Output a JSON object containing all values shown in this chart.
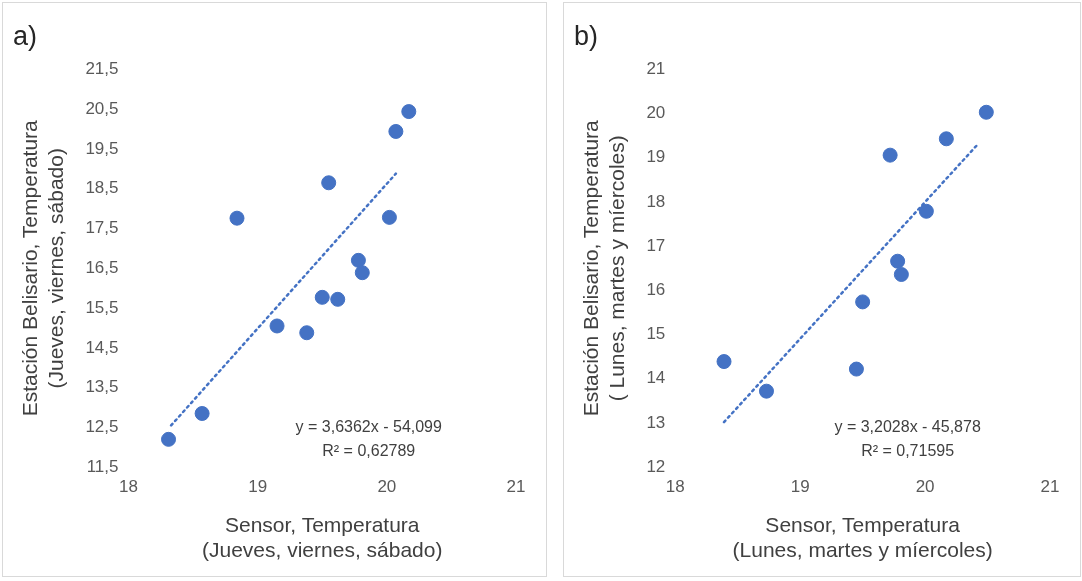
{
  "chart_data": [
    {
      "type": "scatter",
      "title": "a)",
      "xlabel": "Sensor, Temperatura\n(Jueves, viernes, sábado)",
      "ylabel": "Estación Belisario, Temperatura\n(Jueves, viernes, sábado)",
      "xlim": [
        18,
        21
      ],
      "xticks": [
        18,
        19,
        20,
        21
      ],
      "ylim": [
        11.5,
        21.5
      ],
      "yticks": [
        {
          "value": 11.5,
          "label": "11,5"
        },
        {
          "value": 12.5,
          "label": "12,5"
        },
        {
          "value": 13.5,
          "label": "13,5"
        },
        {
          "value": 14.5,
          "label": "14,5"
        },
        {
          "value": 15.5,
          "label": "15,5"
        },
        {
          "value": 16.5,
          "label": "16,5"
        },
        {
          "value": 17.5,
          "label": "17,5"
        },
        {
          "value": 18.5,
          "label": "18,5"
        },
        {
          "value": 19.5,
          "label": "19,5"
        },
        {
          "value": 20.5,
          "label": "20,5"
        },
        {
          "value": 21.5,
          "label": "21,5"
        }
      ],
      "grid": false,
      "legend": false,
      "marker": "circle",
      "series": [
        {
          "type": "scatter",
          "color": "#4472c4",
          "x": [
            18.31,
            18.57,
            18.84,
            19.15,
            19.38,
            19.5,
            19.55,
            19.62,
            19.78,
            19.81,
            20.02,
            20.07,
            20.17
          ],
          "values": [
            12.2,
            12.85,
            17.76,
            15.05,
            14.88,
            15.77,
            18.65,
            15.72,
            16.7,
            16.39,
            17.78,
            19.94,
            20.44
          ]
        },
        {
          "type": "line",
          "color": "#4472c4",
          "line_style": "dotted",
          "marker": "none",
          "x": [
            18.33,
            20.07
          ],
          "values": [
            12.55,
            18.88
          ]
        }
      ],
      "annotations": [
        "y = 3,6362x - 54,099",
        "R² = 0,62789"
      ]
    },
    {
      "type": "scatter",
      "title": "b)",
      "xlabel": "Sensor, Temperatura\n(Lunes, martes y míercoles)",
      "ylabel": "Estación Belisario, Temperatura\n( Lunes, martes y míercoles)",
      "xlim": [
        18,
        21
      ],
      "xticks": [
        18,
        19,
        20,
        21
      ],
      "ylim": [
        12,
        21
      ],
      "yticks": [
        12,
        13,
        14,
        15,
        16,
        17,
        18,
        19,
        20,
        21
      ],
      "grid": false,
      "legend": false,
      "marker": "circle",
      "series": [
        {
          "type": "scatter",
          "color": "#4472c4",
          "x": [
            18.39,
            18.73,
            19.45,
            19.5,
            19.72,
            19.78,
            19.81,
            20.01,
            20.17,
            20.49
          ],
          "values": [
            14.39,
            13.72,
            14.22,
            15.74,
            19.06,
            16.66,
            16.36,
            17.79,
            19.43,
            20.03
          ]
        },
        {
          "type": "line",
          "color": "#4472c4",
          "line_style": "dotted",
          "marker": "none",
          "x": [
            18.39,
            20.42
          ],
          "values": [
            13.02,
            19.3
          ]
        }
      ],
      "annotations": [
        "y = 3,2028x - 45,878",
        "R² = 0,71595"
      ]
    }
  ]
}
